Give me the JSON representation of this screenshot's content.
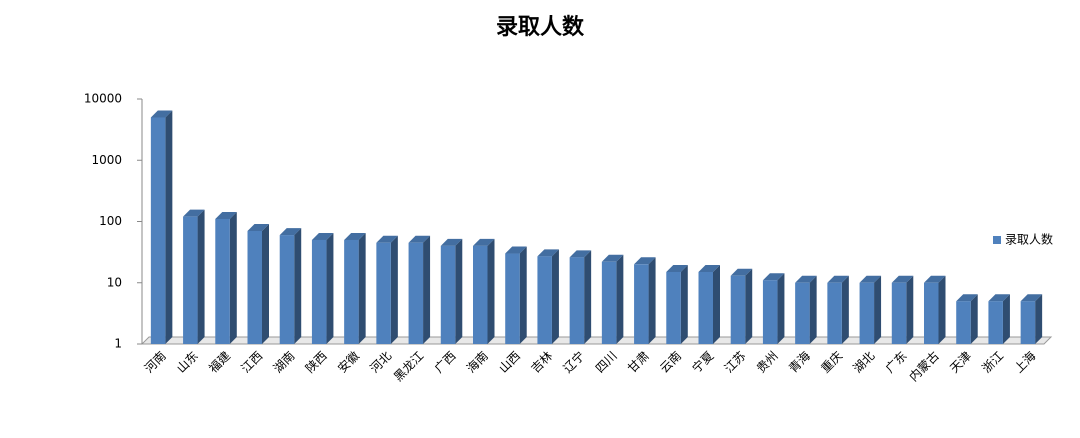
{
  "chart_data": {
    "type": "bar",
    "title": "录取人数",
    "categories": [
      "河南",
      "山东",
      "福建",
      "江西",
      "湖南",
      "陕西",
      "安徽",
      "河北",
      "黑龙江",
      "广西",
      "海南",
      "山西",
      "吉林",
      "辽宁",
      "四川",
      "甘肃",
      "云南",
      "宁夏",
      "江苏",
      "贵州",
      "青海",
      "重庆",
      "湖北",
      "广东",
      "内蒙古",
      "天津",
      "浙江",
      "上海"
    ],
    "series": [
      {
        "name": "录取人数",
        "color": "#4f81bd",
        "values": [
          5000,
          120,
          110,
          70,
          60,
          50,
          50,
          45,
          45,
          40,
          40,
          30,
          27,
          26,
          22,
          20,
          15,
          15,
          13,
          11,
          10,
          10,
          10,
          10,
          10,
          5,
          5,
          5
        ]
      }
    ],
    "log_scale": true,
    "ylim": [
      1,
      10000
    ],
    "yticks": [
      1,
      10,
      100,
      1000,
      10000
    ],
    "grid": false,
    "legend": "right"
  }
}
